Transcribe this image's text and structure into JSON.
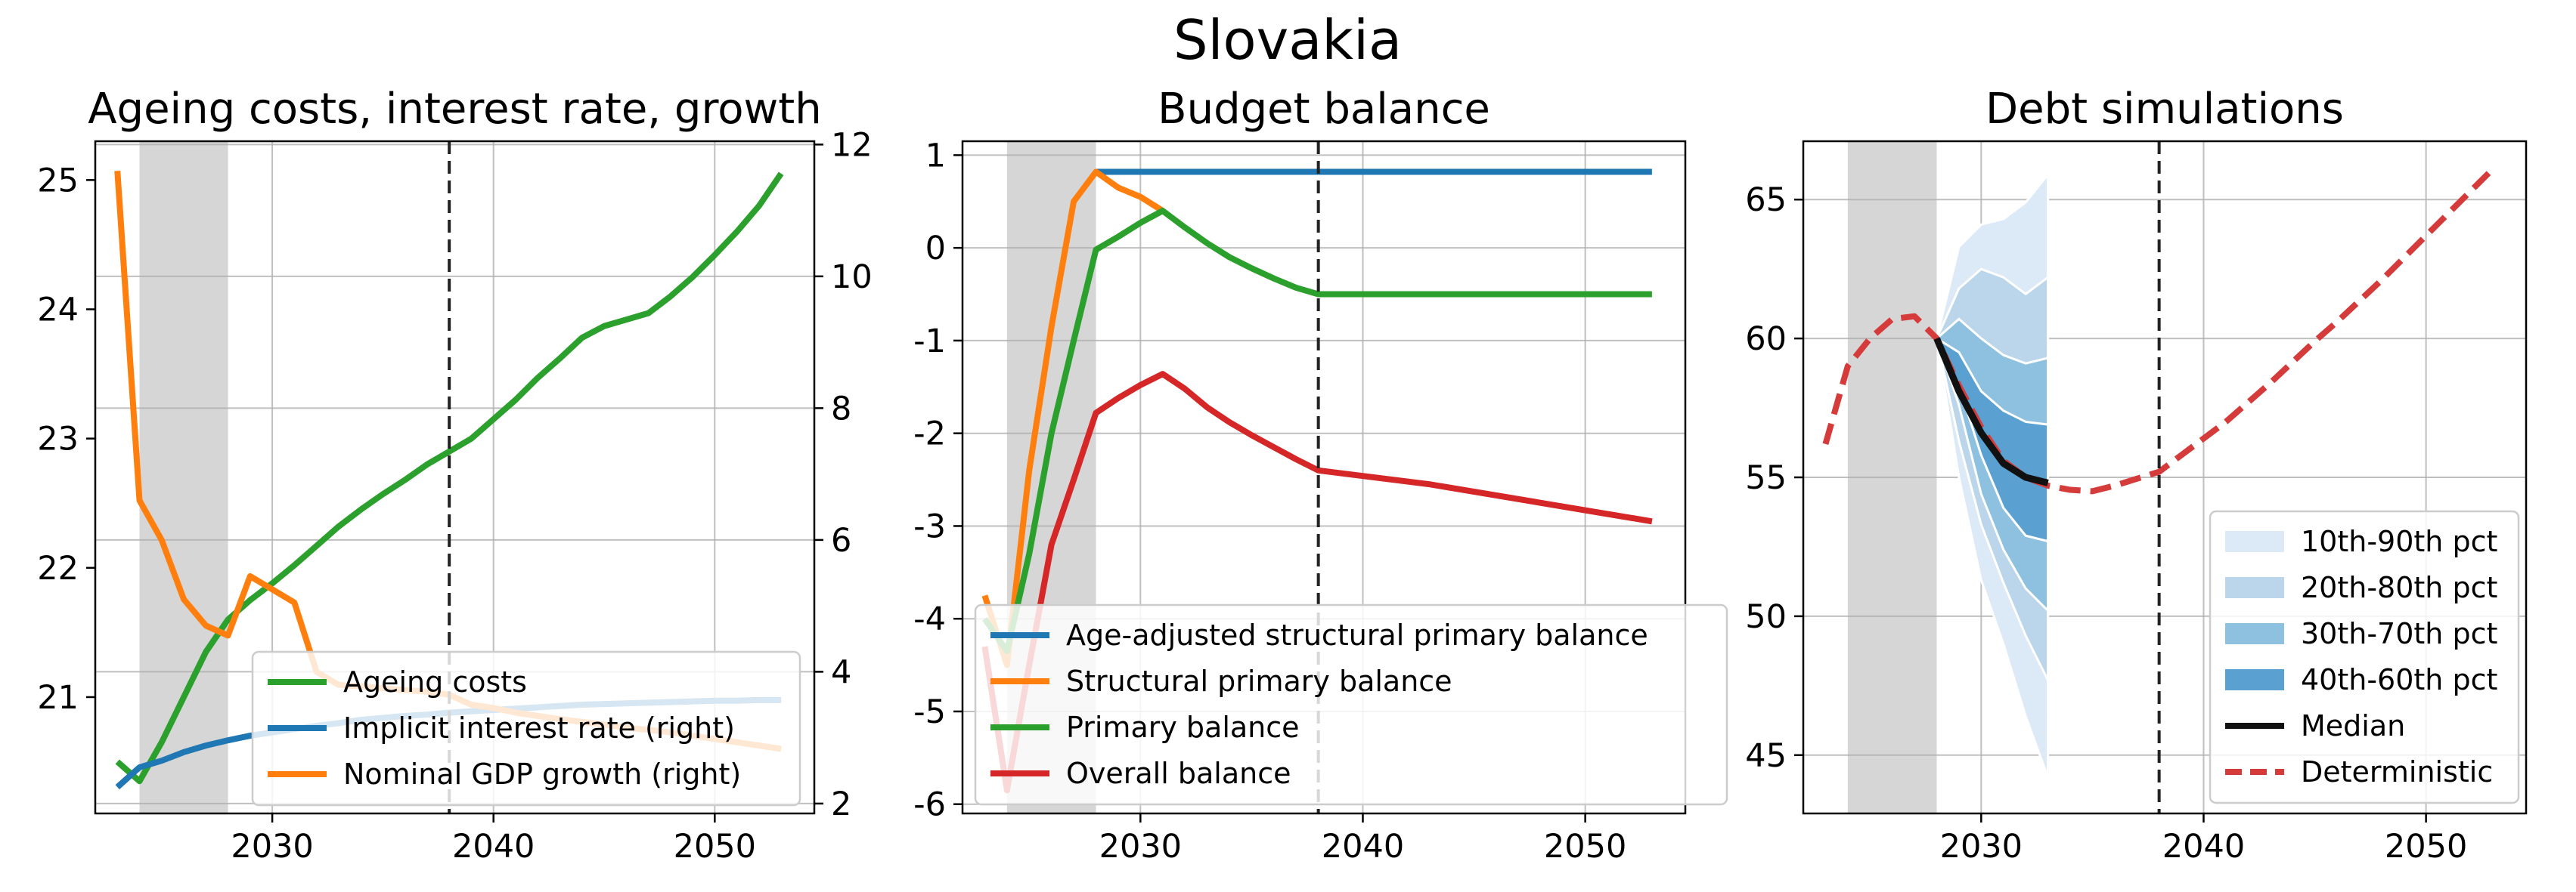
{
  "figure": {
    "title": "Slovakia"
  },
  "chart_data": [
    {
      "type": "line",
      "title": "Ageing costs, interest rate, growth",
      "xlabel": "",
      "ylabel": "",
      "ylabel_right": "",
      "xlim": [
        2022,
        2054.5
      ],
      "ylim": [
        20.1,
        25.3
      ],
      "ylim_right": [
        1.85,
        12.05
      ],
      "xticks": [
        2030,
        2040,
        2050
      ],
      "yticks": [
        21,
        22,
        23,
        24,
        25
      ],
      "yticks_right": [
        2,
        4,
        6,
        8,
        10,
        12
      ],
      "grid": true,
      "shaded_period": [
        2024,
        2028
      ],
      "vline": 2038,
      "legend_position": "lower-right",
      "colors": {
        "ageing": "#2ca02c",
        "interest": "#1f77b4",
        "growth": "#ff7f0e"
      },
      "series": [
        {
          "name": "Ageing costs",
          "axis": "left",
          "x": [
            2023,
            2024,
            2025,
            2026,
            2027,
            2028,
            2029,
            2030,
            2031,
            2032,
            2033,
            2034,
            2035,
            2036,
            2037,
            2038,
            2039,
            2040,
            2041,
            2042,
            2043,
            2044,
            2045,
            2046,
            2047,
            2048,
            2049,
            2050,
            2051,
            2052,
            2053
          ],
          "values": [
            20.5,
            20.35,
            20.65,
            21.0,
            21.35,
            21.6,
            21.75,
            21.88,
            22.02,
            22.17,
            22.32,
            22.45,
            22.57,
            22.68,
            22.8,
            22.9,
            23.0,
            23.15,
            23.3,
            23.47,
            23.62,
            23.78,
            23.87,
            23.92,
            23.97,
            24.1,
            24.25,
            24.42,
            24.6,
            24.8,
            25.05
          ]
        },
        {
          "name": "Implicit interest rate (right)",
          "axis": "right",
          "x": [
            2023,
            2024,
            2025,
            2026,
            2027,
            2028,
            2029,
            2030,
            2031,
            2032,
            2033,
            2034,
            2035,
            2036,
            2037,
            2038,
            2039,
            2040,
            2041,
            2042,
            2043,
            2044,
            2045,
            2046,
            2047,
            2048,
            2049,
            2050,
            2051,
            2052,
            2053
          ],
          "values": [
            2.25,
            2.55,
            2.65,
            2.78,
            2.88,
            2.96,
            3.03,
            3.08,
            3.13,
            3.18,
            3.22,
            3.27,
            3.3,
            3.33,
            3.35,
            3.38,
            3.4,
            3.42,
            3.44,
            3.46,
            3.48,
            3.5,
            3.51,
            3.52,
            3.53,
            3.54,
            3.55,
            3.56,
            3.56,
            3.57,
            3.57
          ]
        },
        {
          "name": "Nominal GDP growth (right)",
          "axis": "right",
          "x": [
            2023,
            2024,
            2025,
            2026,
            2027,
            2028,
            2029,
            2030,
            2031,
            2032,
            2033,
            2034,
            2035,
            2036,
            2037,
            2038,
            2039,
            2040,
            2041,
            2042,
            2043,
            2044,
            2045,
            2046,
            2047,
            2048,
            2049,
            2050,
            2051,
            2052,
            2053
          ],
          "values": [
            11.6,
            6.6,
            6.0,
            5.1,
            4.7,
            4.55,
            5.45,
            5.25,
            5.05,
            4.0,
            3.8,
            3.78,
            3.75,
            3.72,
            3.7,
            3.65,
            3.5,
            3.45,
            3.38,
            3.33,
            3.28,
            3.24,
            3.2,
            3.15,
            3.12,
            3.08,
            3.03,
            2.98,
            2.93,
            2.88,
            2.83
          ]
        }
      ]
    },
    {
      "type": "line",
      "title": "Budget balance",
      "xlabel": "",
      "ylabel": "",
      "xlim": [
        2022,
        2054.5
      ],
      "ylim": [
        -6.1,
        1.15
      ],
      "xticks": [
        2030,
        2040,
        2050
      ],
      "yticks": [
        1,
        0,
        -1,
        -2,
        -3,
        -4,
        -5,
        -6
      ],
      "grid": true,
      "shaded_period": [
        2024,
        2028
      ],
      "vline": 2038,
      "legend_position": "lower-left",
      "colors": {
        "adjusted": "#1f77b4",
        "structural": "#ff7f0e",
        "primary": "#2ca02c",
        "overall": "#d62728"
      },
      "series": [
        {
          "name": "Age-adjusted structural primary balance",
          "x": [
            2028,
            2053
          ],
          "values": [
            0.82,
            0.82
          ]
        },
        {
          "name": "Structural primary balance",
          "x": [
            2023,
            2024,
            2025,
            2026,
            2027,
            2028,
            2029,
            2030,
            2031
          ],
          "values": [
            -3.75,
            -4.5,
            -2.4,
            -0.85,
            0.5,
            0.82,
            0.65,
            0.55,
            0.4
          ]
        },
        {
          "name": "Primary balance",
          "x": [
            2023,
            2024,
            2025,
            2026,
            2027,
            2028,
            2029,
            2030,
            2031,
            2032,
            2033,
            2034,
            2035,
            2036,
            2037,
            2038,
            2053
          ],
          "values": [
            -4.0,
            -4.35,
            -3.3,
            -2.0,
            -1.0,
            -0.02,
            0.12,
            0.27,
            0.4,
            0.22,
            0.05,
            -0.1,
            -0.22,
            -0.33,
            -0.43,
            -0.5,
            -0.5
          ]
        },
        {
          "name": "Overall balance",
          "x": [
            2023,
            2024,
            2025,
            2026,
            2027,
            2028,
            2029,
            2030,
            2031,
            2032,
            2033,
            2034,
            2035,
            2036,
            2037,
            2038,
            2043,
            2048,
            2053
          ],
          "values": [
            -4.3,
            -5.85,
            -4.5,
            -3.2,
            -2.5,
            -1.78,
            -1.62,
            -1.48,
            -1.36,
            -1.52,
            -1.72,
            -1.88,
            -2.02,
            -2.15,
            -2.28,
            -2.4,
            -2.55,
            -2.75,
            -2.95
          ]
        }
      ]
    },
    {
      "type": "area",
      "title": "Debt simulations",
      "xlabel": "",
      "ylabel": "",
      "xlim": [
        2022,
        2054.5
      ],
      "ylim": [
        42.9,
        67.1
      ],
      "xticks": [
        2030,
        2040,
        2050
      ],
      "yticks": [
        45,
        50,
        55,
        60,
        65
      ],
      "grid": true,
      "shaded_period": [
        2024,
        2028
      ],
      "vline": 2038,
      "legend_position": "lower-right",
      "colors": {
        "p10_90": "#dce9f6",
        "p20_80": "#bbd6eb",
        "p30_70": "#8ec1df",
        "p40_60": "#5aa0d0",
        "median": "#111111",
        "deterministic": "#d63b3b"
      },
      "fan_x": [
        2028,
        2029,
        2030,
        2031,
        2032,
        2033
      ],
      "bands": [
        {
          "name": "10th-90th pct",
          "lower": [
            60.0,
            55.0,
            51.3,
            49.0,
            46.4,
            44.2
          ],
          "upper": [
            60.0,
            63.3,
            64.1,
            64.3,
            64.9,
            65.9
          ]
        },
        {
          "name": "20th-80th pct",
          "lower": [
            60.0,
            56.3,
            53.3,
            51.2,
            49.3,
            47.7
          ],
          "upper": [
            60.0,
            61.8,
            62.5,
            62.2,
            61.6,
            62.2
          ]
        },
        {
          "name": "30th-70th pct",
          "lower": [
            60.0,
            57.6,
            54.4,
            52.4,
            51.0,
            50.2
          ],
          "upper": [
            60.0,
            60.7,
            60.0,
            59.4,
            59.1,
            59.3
          ]
        },
        {
          "name": "40th-60th pct",
          "lower": [
            60.0,
            58.3,
            55.8,
            53.9,
            52.9,
            52.7
          ],
          "upper": [
            60.0,
            59.5,
            58.1,
            57.4,
            57.0,
            56.9
          ]
        }
      ],
      "series": [
        {
          "name": "Median",
          "x": [
            2028,
            2029,
            2030,
            2031,
            2032,
            2033
          ],
          "values": [
            60.0,
            58.1,
            56.6,
            55.5,
            55.0,
            54.8
          ]
        },
        {
          "name": "Deterministic",
          "x": [
            2023,
            2024,
            2025,
            2026,
            2027,
            2028,
            2029,
            2030,
            2031,
            2032,
            2033,
            2034,
            2035,
            2036,
            2037,
            2038,
            2039,
            2040,
            2041,
            2042,
            2043,
            2044,
            2045,
            2046,
            2047,
            2048,
            2049,
            2050,
            2051,
            2052,
            2053
          ],
          "values": [
            56.2,
            59.0,
            60.0,
            60.7,
            60.8,
            60.0,
            58.3,
            56.8,
            55.6,
            55.0,
            54.7,
            54.55,
            54.5,
            54.7,
            54.95,
            55.2,
            55.8,
            56.4,
            57.0,
            57.7,
            58.4,
            59.15,
            59.9,
            60.6,
            61.35,
            62.1,
            62.9,
            63.7,
            64.5,
            65.3,
            66.1
          ]
        }
      ]
    }
  ]
}
